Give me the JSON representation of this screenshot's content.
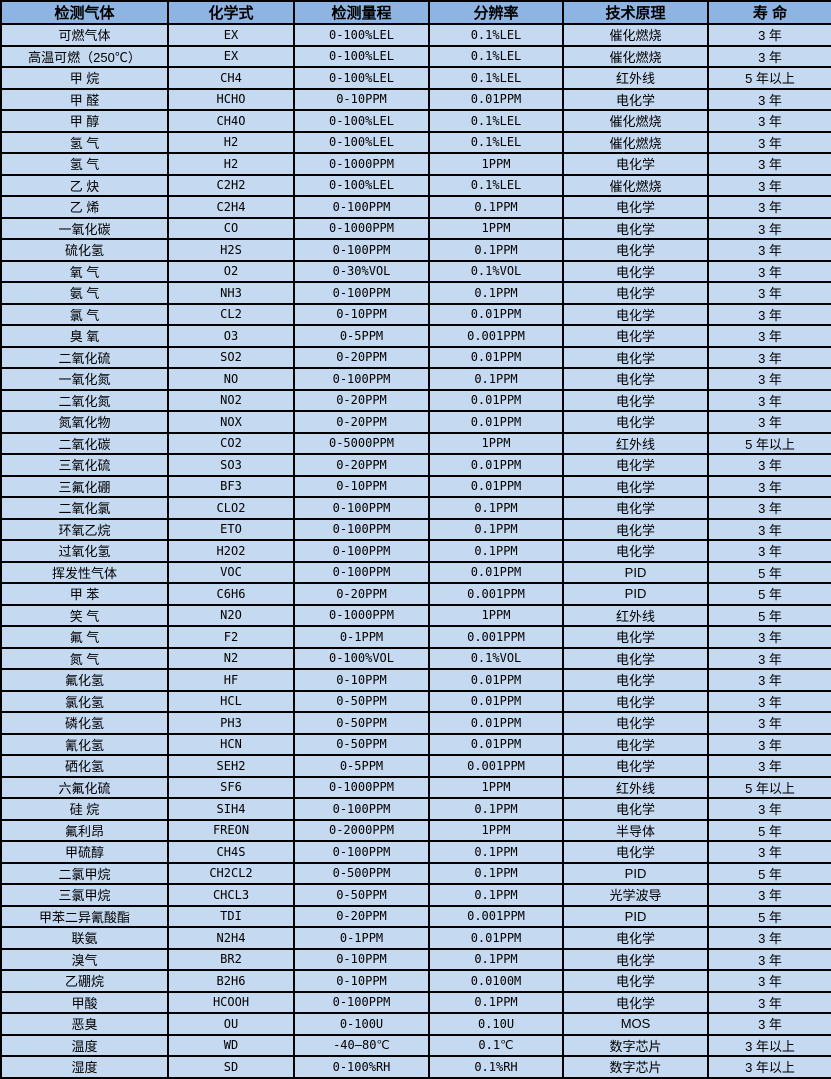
{
  "colors": {
    "header_bg": "#8DB4E2",
    "row_bg": "#C5D9F1",
    "border": "#000000",
    "text": "#000000"
  },
  "table": {
    "columns": [
      {
        "label": "检测气体"
      },
      {
        "label": "化学式"
      },
      {
        "label": "检测量程"
      },
      {
        "label": "分辨率"
      },
      {
        "label": "技术原理"
      },
      {
        "label": "寿 命"
      }
    ],
    "rows": [
      {
        "cells": [
          "可燃气体",
          "EX",
          "0-100%LEL",
          "0.1%LEL",
          "催化燃烧",
          "3 年"
        ]
      },
      {
        "cells": [
          "高温可燃（250℃）",
          "EX",
          "0-100%LEL",
          "0.1%LEL",
          "催化燃烧",
          "3 年"
        ]
      },
      {
        "cells": [
          "甲 烷",
          "CH4",
          "0-100%LEL",
          "0.1%LEL",
          "红外线",
          "5 年以上"
        ]
      },
      {
        "cells": [
          "甲 醛",
          "HCHO",
          "0-10PPM",
          "0.01PPM",
          "电化学",
          "3 年"
        ]
      },
      {
        "cells": [
          "甲 醇",
          "CH4O",
          "0-100%LEL",
          "0.1%LEL",
          "催化燃烧",
          "3 年"
        ]
      },
      {
        "cells": [
          "氢 气",
          "H2",
          "0-100%LEL",
          "0.1%LEL",
          "催化燃烧",
          "3 年"
        ]
      },
      {
        "cells": [
          "氢 气",
          "H2",
          "0-1000PPM",
          "1PPM",
          "电化学",
          "3 年"
        ]
      },
      {
        "cells": [
          "乙 炔",
          "C2H2",
          "0-100%LEL",
          "0.1%LEL",
          "催化燃烧",
          "3 年"
        ]
      },
      {
        "cells": [
          "乙 烯",
          "C2H4",
          "0-100PPM",
          "0.1PPM",
          "电化学",
          "3 年"
        ]
      },
      {
        "cells": [
          "一氧化碳",
          "CO",
          "0-1000PPM",
          "1PPM",
          "电化学",
          "3 年"
        ]
      },
      {
        "cells": [
          "硫化氢",
          "H2S",
          "0-100PPM",
          "0.1PPM",
          "电化学",
          "3 年"
        ]
      },
      {
        "cells": [
          "氧 气",
          "O2",
          "0-30%VOL",
          "0.1%VOL",
          "电化学",
          "3 年"
        ]
      },
      {
        "cells": [
          "氨 气",
          "NH3",
          "0-100PPM",
          "0.1PPM",
          "电化学",
          "3 年"
        ]
      },
      {
        "cells": [
          "氯 气",
          "CL2",
          "0-10PPM",
          "0.01PPM",
          "电化学",
          "3 年"
        ]
      },
      {
        "cells": [
          "臭 氧",
          "O3",
          "0-5PPM",
          "0.001PPM",
          "电化学",
          "3 年"
        ]
      },
      {
        "cells": [
          "二氧化硫",
          "SO2",
          "0-20PPM",
          "0.01PPM",
          "电化学",
          "3 年"
        ]
      },
      {
        "cells": [
          "一氧化氮",
          "NO",
          "0-100PPM",
          "0.1PPM",
          "电化学",
          "3 年"
        ]
      },
      {
        "cells": [
          "二氧化氮",
          "NO2",
          "0-20PPM",
          "0.01PPM",
          "电化学",
          "3 年"
        ]
      },
      {
        "cells": [
          "氮氧化物",
          "NOX",
          "0-20PPM",
          "0.01PPM",
          "电化学",
          "3 年"
        ]
      },
      {
        "cells": [
          "二氧化碳",
          "CO2",
          "0-5000PPM",
          "1PPM",
          "红外线",
          "5 年以上"
        ]
      },
      {
        "cells": [
          "三氧化硫",
          "SO3",
          "0-20PPM",
          "0.01PPM",
          "电化学",
          "3 年"
        ]
      },
      {
        "cells": [
          "三氟化硼",
          "BF3",
          "0-10PPM",
          "0.01PPM",
          "电化学",
          "3 年"
        ]
      },
      {
        "cells": [
          "二氧化氯",
          "CLO2",
          "0-100PPM",
          "0.1PPM",
          "电化学",
          "3 年"
        ]
      },
      {
        "cells": [
          "环氧乙烷",
          "ETO",
          "0-100PPM",
          "0.1PPM",
          "电化学",
          "3 年"
        ]
      },
      {
        "cells": [
          "过氧化氢",
          "H2O2",
          "0-100PPM",
          "0.1PPM",
          "电化学",
          "3 年"
        ]
      },
      {
        "cells": [
          "挥发性气体",
          "VOC",
          "0-100PPM",
          "0.01PPM",
          "PID",
          "5 年"
        ]
      },
      {
        "cells": [
          "甲 苯",
          "C6H6",
          "0-20PPM",
          "0.001PPM",
          "PID",
          "5 年"
        ]
      },
      {
        "cells": [
          "笑 气",
          "N2O",
          "0-1000PPM",
          "1PPM",
          "红外线",
          "5 年"
        ]
      },
      {
        "cells": [
          "氟 气",
          "F2",
          "0-1PPM",
          "0.001PPM",
          "电化学",
          "3 年"
        ]
      },
      {
        "cells": [
          "氮 气",
          "N2",
          "0-100%VOL",
          "0.1%VOL",
          "电化学",
          "3 年"
        ]
      },
      {
        "cells": [
          "氟化氢",
          "HF",
          "0-10PPM",
          "0.01PPM",
          "电化学",
          "3 年"
        ]
      },
      {
        "cells": [
          "氯化氢",
          "HCL",
          "0-50PPM",
          "0.01PPM",
          "电化学",
          "3 年"
        ]
      },
      {
        "cells": [
          "磷化氢",
          "PH3",
          "0-50PPM",
          "0.01PPM",
          "电化学",
          "3 年"
        ]
      },
      {
        "cells": [
          "氰化氢",
          "HCN",
          "0-50PPM",
          "0.01PPM",
          "电化学",
          "3 年"
        ]
      },
      {
        "cells": [
          "硒化氢",
          "SEH2",
          "0-5PPM",
          "0.001PPM",
          "电化学",
          "3 年"
        ]
      },
      {
        "cells": [
          "六氟化硫",
          "SF6",
          "0-1000PPM",
          "1PPM",
          "红外线",
          "5 年以上"
        ]
      },
      {
        "cells": [
          "硅 烷",
          "SIH4",
          "0-100PPM",
          "0.1PPM",
          "电化学",
          "3 年"
        ]
      },
      {
        "cells": [
          "氟利昂",
          "FREON",
          "0-2000PPM",
          "1PPM",
          "半导体",
          "5 年"
        ]
      },
      {
        "cells": [
          "甲硫醇",
          "CH4S",
          "0-100PPM",
          "0.1PPM",
          "电化学",
          "3 年"
        ]
      },
      {
        "cells": [
          "二氯甲烷",
          "CH2CL2",
          "0-500PPM",
          "0.1PPM",
          "PID",
          "5 年"
        ]
      },
      {
        "cells": [
          "三氯甲烷",
          "CHCL3",
          "0-50PPM",
          "0.1PPM",
          "光学波导",
          "3 年"
        ]
      },
      {
        "cells": [
          "甲苯二异氰酸酯",
          "TDI",
          "0-20PPM",
          "0.001PPM",
          "PID",
          "5 年"
        ]
      },
      {
        "cells": [
          "联氨",
          "N2H4",
          "0-1PPM",
          "0.01PPM",
          "电化学",
          "3 年"
        ]
      },
      {
        "cells": [
          "溴气",
          "BR2",
          "0-10PPM",
          "0.1PPM",
          "电化学",
          "3 年"
        ]
      },
      {
        "cells": [
          "乙硼烷",
          "B2H6",
          "0-10PPM",
          "0.0100M",
          "电化学",
          "3 年"
        ]
      },
      {
        "cells": [
          "甲酸",
          "HCOOH",
          "0-100PPM",
          "0.1PPM",
          "电化学",
          "3 年"
        ]
      },
      {
        "cells": [
          "恶臭",
          "OU",
          "0-100U",
          "0.10U",
          "MOS",
          "3 年"
        ]
      },
      {
        "cells": [
          "温度",
          "WD",
          "-40—80℃",
          "0.1℃",
          "数字芯片",
          "3 年以上"
        ]
      },
      {
        "cells": [
          "湿度",
          "SD",
          "0-100%RH",
          "0.1%RH",
          "数字芯片",
          "3 年以上"
        ]
      }
    ]
  }
}
